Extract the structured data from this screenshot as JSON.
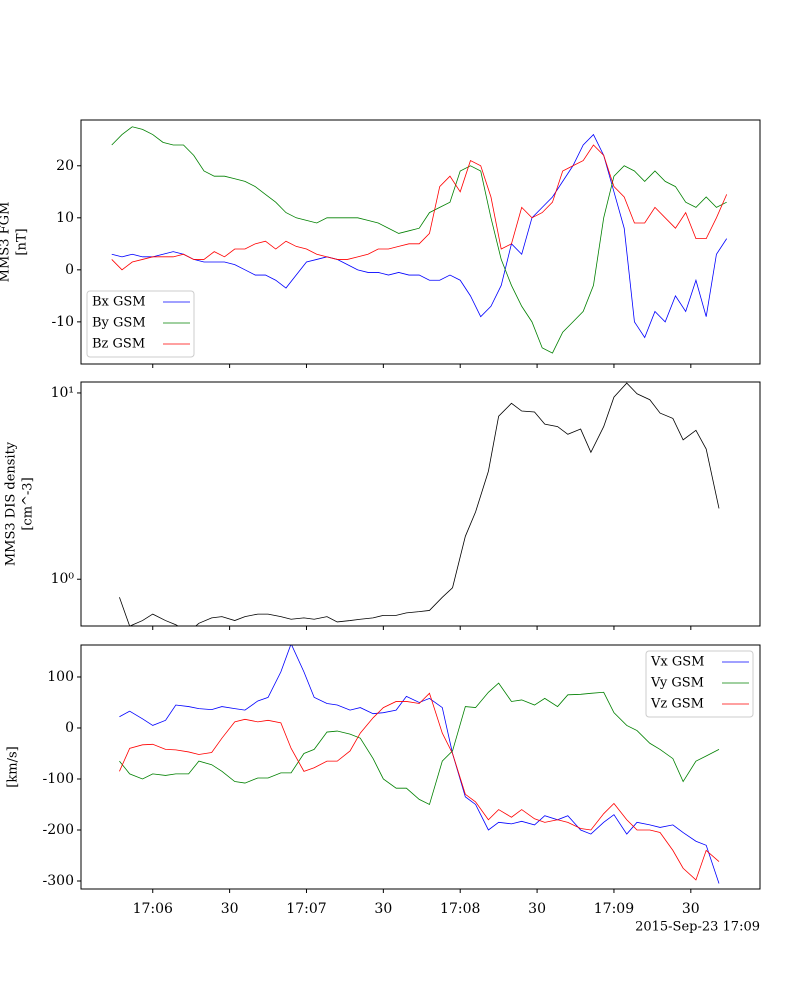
{
  "chart_data": [
    {
      "type": "line",
      "ylabel": [
        "MMS3 FGM",
        "[nT]"
      ],
      "x": [
        "17:05:44",
        "17:05:48",
        "17:05:52",
        "17:05:56",
        "17:06:00",
        "17:06:04",
        "17:06:08",
        "17:06:12",
        "17:06:16",
        "17:06:20",
        "17:06:24",
        "17:06:28",
        "17:06:32",
        "17:06:36",
        "17:06:40",
        "17:06:44",
        "17:06:48",
        "17:06:52",
        "17:06:56",
        "17:07:00",
        "17:07:04",
        "17:07:08",
        "17:07:12",
        "17:07:16",
        "17:07:20",
        "17:07:24",
        "17:07:28",
        "17:07:32",
        "17:07:36",
        "17:07:40",
        "17:07:44",
        "17:07:48",
        "17:07:52",
        "17:07:56",
        "17:08:00",
        "17:08:04",
        "17:08:08",
        "17:08:12",
        "17:08:16",
        "17:08:20",
        "17:08:24",
        "17:08:28",
        "17:08:32",
        "17:08:36",
        "17:08:40",
        "17:08:44",
        "17:08:48",
        "17:08:52",
        "17:08:56",
        "17:09:00",
        "17:09:04",
        "17:09:08",
        "17:09:12",
        "17:09:16",
        "17:09:20",
        "17:09:24",
        "17:09:28",
        "17:09:32",
        "17:09:36",
        "17:09:40",
        "17:09:44"
      ],
      "series": [
        {
          "name": "Bx GSM",
          "color": "#0000ff",
          "values": [
            3,
            2.5,
            3,
            2.5,
            2.5,
            3,
            3.5,
            3,
            2,
            1.5,
            1.5,
            1.5,
            1,
            0,
            -1,
            -1,
            -2,
            -3.5,
            -1,
            1.5,
            2,
            2.5,
            2,
            1,
            0,
            -0.5,
            -0.5,
            -1,
            -0.5,
            -1,
            -1,
            -2,
            -2,
            -1,
            -2,
            -5,
            -9,
            -7,
            -3,
            5,
            3,
            10,
            12,
            14,
            17,
            20,
            24,
            26,
            22,
            15,
            8,
            -10,
            -13,
            -8,
            -10,
            -5,
            -8,
            -2,
            -9,
            3,
            6
          ]
        },
        {
          "name": "By GSM",
          "color": "#008000",
          "values": [
            24,
            26,
            27.5,
            27,
            26,
            24.5,
            24,
            24,
            22,
            19,
            18,
            18,
            17.5,
            17,
            16,
            14.5,
            13,
            11,
            10,
            9.5,
            9,
            10,
            10,
            10,
            10,
            9.5,
            9,
            8,
            7,
            7.5,
            8,
            11,
            12,
            13,
            19,
            20,
            19,
            10,
            2,
            -3,
            -7,
            -10,
            -15,
            -16,
            -12,
            -10,
            -8,
            -3,
            10,
            18,
            20,
            19,
            17,
            19,
            17,
            16,
            13,
            12,
            14,
            12,
            13
          ]
        },
        {
          "name": "Bz GSM",
          "color": "#ff0000",
          "values": [
            2,
            0,
            1.5,
            2,
            2.5,
            2.5,
            2.5,
            3,
            2,
            2,
            3.5,
            2.5,
            4,
            4,
            5,
            5.5,
            4,
            5.5,
            4.5,
            4,
            3,
            2.5,
            2,
            2,
            2.5,
            3,
            4,
            4,
            4.5,
            5,
            5,
            7,
            16,
            18,
            15,
            21,
            20,
            14,
            4,
            5,
            12,
            10,
            11,
            13,
            19,
            20,
            21,
            24,
            22,
            16,
            14,
            9,
            9,
            12,
            10,
            8,
            11,
            6,
            6,
            10,
            14.5
          ]
        }
      ],
      "ylim": [
        -18.1,
        28.8
      ],
      "yticks": [
        -10,
        0,
        10,
        20
      ],
      "legend": "lower left"
    },
    {
      "type": "line",
      "ylabel": [
        "MMS3 DIS density",
        "[cm^-3]"
      ],
      "x": [
        "17:05:47",
        "17:05:51",
        "17:05:56",
        "17:06:00",
        "17:06:05",
        "17:06:09",
        "17:06:14",
        "17:06:18",
        "17:06:23",
        "17:06:27",
        "17:06:32",
        "17:06:36",
        "17:06:41",
        "17:06:45",
        "17:06:50",
        "17:06:54",
        "17:06:59",
        "17:07:03",
        "17:07:08",
        "17:07:12",
        "17:07:17",
        "17:07:21",
        "17:07:26",
        "17:07:30",
        "17:07:35",
        "17:07:39",
        "17:07:44",
        "17:07:48",
        "17:07:53",
        "17:07:57",
        "17:08:02",
        "17:08:06",
        "17:08:11",
        "17:08:15",
        "17:08:20",
        "17:08:24",
        "17:08:29",
        "17:08:33",
        "17:08:38",
        "17:08:42",
        "17:08:47",
        "17:08:51",
        "17:08:56",
        "17:09:00",
        "17:09:05",
        "17:09:09",
        "17:09:14",
        "17:09:18",
        "17:09:23",
        "17:09:27",
        "17:09:32",
        "17:09:36",
        "17:09:41"
      ],
      "values": [
        0.8,
        0.56,
        0.6,
        0.65,
        0.6,
        0.57,
        0.52,
        0.58,
        0.62,
        0.63,
        0.6,
        0.63,
        0.65,
        0.65,
        0.63,
        0.61,
        0.62,
        0.61,
        0.63,
        0.59,
        0.6,
        0.61,
        0.62,
        0.64,
        0.64,
        0.66,
        0.67,
        0.68,
        0.8,
        0.9,
        1.7,
        2.3,
        3.8,
        7.5,
        8.8,
        8.0,
        7.9,
        6.8,
        6.6,
        6.0,
        6.4,
        4.8,
        6.6,
        9.5,
        11.3,
        9.9,
        9.2,
        7.8,
        7.3,
        5.6,
        6.3,
        5.0,
        2.4
      ],
      "color": "#000000",
      "log_y": true,
      "ylim": [
        0.561,
        11.45
      ],
      "yticks": [
        {
          "value": 1,
          "label": "10⁰"
        },
        {
          "value": 10,
          "label": "10¹"
        }
      ]
    },
    {
      "type": "line",
      "ylabel": [
        "[km/s]"
      ],
      "x": [
        "17:05:47",
        "17:05:51",
        "17:05:56",
        "17:06:00",
        "17:06:05",
        "17:06:09",
        "17:06:14",
        "17:06:18",
        "17:06:23",
        "17:06:27",
        "17:06:32",
        "17:06:36",
        "17:06:41",
        "17:06:45",
        "17:06:50",
        "17:06:54",
        "17:06:59",
        "17:07:03",
        "17:07:08",
        "17:07:12",
        "17:07:17",
        "17:07:21",
        "17:07:26",
        "17:07:30",
        "17:07:35",
        "17:07:39",
        "17:07:44",
        "17:07:48",
        "17:07:53",
        "17:07:57",
        "17:08:02",
        "17:08:06",
        "17:08:11",
        "17:08:15",
        "17:08:20",
        "17:08:24",
        "17:08:29",
        "17:08:33",
        "17:08:38",
        "17:08:42",
        "17:08:47",
        "17:08:51",
        "17:08:56",
        "17:09:00",
        "17:09:05",
        "17:09:09",
        "17:09:14",
        "17:09:18",
        "17:09:23",
        "17:09:27",
        "17:09:32",
        "17:09:36",
        "17:09:41"
      ],
      "series": [
        {
          "name": "Vx GSM",
          "color": "#0000ff",
          "values": [
            22,
            33,
            18,
            5,
            15,
            45,
            42,
            38,
            36,
            42,
            38,
            35,
            53,
            60,
            110,
            165,
            110,
            60,
            48,
            45,
            35,
            40,
            28,
            30,
            35,
            62,
            50,
            58,
            40,
            -50,
            -135,
            -150,
            -200,
            -185,
            -188,
            -183,
            -190,
            -172,
            -180,
            -172,
            -200,
            -208,
            -185,
            -170,
            -208,
            -185,
            -190,
            -195,
            -190,
            -205,
            -222,
            -230,
            -305
          ]
        },
        {
          "name": "Vy GSM",
          "color": "#008000",
          "values": [
            -65,
            -90,
            -100,
            -90,
            -93,
            -90,
            -90,
            -65,
            -72,
            -85,
            -105,
            -108,
            -98,
            -98,
            -88,
            -88,
            -50,
            -42,
            -8,
            -6,
            -12,
            -20,
            -60,
            -100,
            -118,
            -118,
            -140,
            -150,
            -65,
            -45,
            42,
            40,
            70,
            88,
            52,
            55,
            45,
            58,
            42,
            65,
            66,
            68,
            70,
            30,
            5,
            -5,
            -30,
            -42,
            -60,
            -105,
            -65,
            -55,
            -42
          ]
        },
        {
          "name": "Vz GSM",
          "color": "#ff0000",
          "values": [
            -85,
            -40,
            -33,
            -32,
            -42,
            -43,
            -47,
            -52,
            -48,
            -20,
            12,
            17,
            12,
            15,
            10,
            -40,
            -85,
            -78,
            -65,
            -65,
            -45,
            -10,
            20,
            40,
            52,
            52,
            48,
            68,
            -10,
            -50,
            -130,
            -145,
            -180,
            -160,
            -175,
            -160,
            -178,
            -185,
            -180,
            -185,
            -197,
            -200,
            -168,
            -148,
            -180,
            -200,
            -200,
            -205,
            -240,
            -275,
            -298,
            -240,
            -262
          ]
        }
      ],
      "ylim": [
        -315.7,
        162.7
      ],
      "yticks": [
        -300,
        -200,
        -100,
        0,
        100
      ],
      "legend": "upper right",
      "xlim": [
        "17:05:32",
        "17:09:57"
      ],
      "xticks": [
        {
          "value": "17:06:00",
          "label": "17:06"
        },
        {
          "value": "17:06:30",
          "label": "30"
        },
        {
          "value": "17:07:00",
          "label": "17:07"
        },
        {
          "value": "17:07:30",
          "label": "30"
        },
        {
          "value": "17:08:00",
          "label": "17:08"
        },
        {
          "value": "17:08:30",
          "label": "30"
        },
        {
          "value": "17:09:00",
          "label": "17:09"
        },
        {
          "value": "17:09:30",
          "label": "30"
        }
      ],
      "annotation": "2015-Sep-23 17:09"
    }
  ]
}
